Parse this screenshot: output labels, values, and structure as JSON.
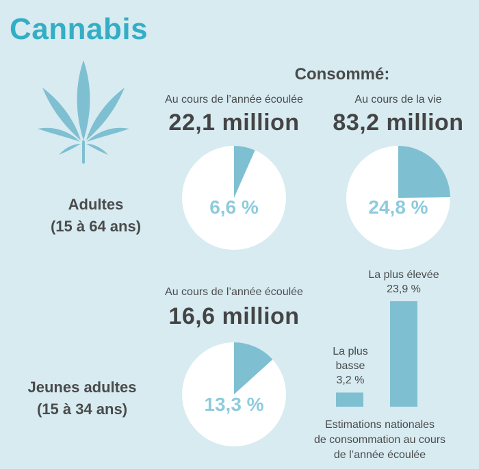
{
  "title": "Cannabis",
  "consomme_label": "Consommé:",
  "colors": {
    "background": "#d7ebf1",
    "accent": "#34aec4",
    "slice": "#7fbfd2",
    "pie_bg": "#ffffff"
  },
  "adults": {
    "label_line1": "Adultes",
    "label_line2": "(15 à 64 ans)",
    "past_year_label": "Au cours de l’année écoulée",
    "past_year_value": "22,1 million",
    "past_year_pct_text": "6,6 %",
    "lifetime_label": "Au cours de la vie",
    "lifetime_value": "83,2 million",
    "lifetime_pct_text": "24,8 %"
  },
  "young_adults": {
    "label_line1": "Jeunes adultes",
    "label_line2": "(15 à 34 ans)",
    "past_year_label": "Au cours de l’année écoulée",
    "past_year_value": "16,6 million",
    "past_year_pct_text": "13,3 %"
  },
  "bars": {
    "highest_label": "La plus élevée",
    "highest_value_text": "23,9 %",
    "lowest_label_line1": "La plus",
    "lowest_label_line2": "basse",
    "lowest_value_text": "3,2 %",
    "caption_line1": "Estimations nationales",
    "caption_line2": "de consommation au cours",
    "caption_line3": "de l’année écoulée"
  },
  "chart_data": [
    {
      "type": "pie",
      "title": "Adultes — Au cours de l’année écoulée",
      "values": [
        6.6,
        93.4
      ]
    },
    {
      "type": "pie",
      "title": "Adultes — Au cours de la vie",
      "values": [
        24.8,
        75.2
      ]
    },
    {
      "type": "pie",
      "title": "Jeunes adultes — Au cours de l’année écoulée",
      "values": [
        13.3,
        86.7
      ]
    },
    {
      "type": "bar",
      "categories": [
        "La plus basse",
        "La plus élevée"
      ],
      "values": [
        3.2,
        23.9
      ],
      "ylim": [
        0,
        23.9
      ]
    }
  ]
}
